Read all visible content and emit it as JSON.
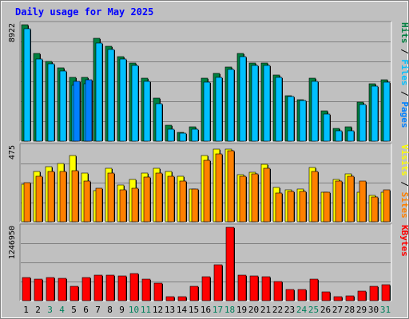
{
  "chart_data": {
    "type": "bar",
    "title": "Daily usage for May 2025",
    "days": [
      "1",
      "2",
      "3",
      "4",
      "5",
      "6",
      "7",
      "8",
      "9",
      "10",
      "11",
      "12",
      "13",
      "14",
      "15",
      "16",
      "17",
      "18",
      "19",
      "20",
      "21",
      "22",
      "23",
      "24",
      "25",
      "26",
      "27",
      "28",
      "29",
      "30",
      "31"
    ],
    "weekend_days": [
      "3",
      "4",
      "10",
      "11",
      "17",
      "18",
      "24",
      "25",
      "31"
    ],
    "colors": {
      "hits": "#008040",
      "files": "#00c0ff",
      "pages": "#0080ff",
      "visits": "#ffff00",
      "sites": "#ff8000",
      "kbytes": "#ff0000",
      "title": "#0000ff",
      "weekend": "#00805c",
      "weekday": "#000000"
    },
    "panels": [
      {
        "name": "hits-files-pages",
        "max_label": "8922",
        "ymax": 8922,
        "series": [
          {
            "name": "Hits",
            "values": [
              8922,
              6700,
              6100,
              5600,
              4900,
              4900,
              7900,
              7300,
              6500,
              6000,
              4800,
              3300,
              1200,
              700,
              1100,
              4800,
              5200,
              5700,
              6700,
              6000,
              6000,
              5100,
              3500,
              3200,
              4800,
              2300,
              1000,
              1100,
              3000,
              4400,
              4700
            ]
          },
          {
            "name": "Files",
            "values": [
              8600,
              6300,
              5900,
              5400,
              4300,
              4400,
              7500,
              7000,
              6300,
              5800,
              4600,
              2900,
              900,
              600,
              900,
              4500,
              4900,
              5500,
              6500,
              5800,
              5800,
              4900,
              3400,
              3100,
              4600,
              2100,
              800,
              800,
              2800,
              4200,
              4500
            ]
          },
          {
            "name": "Pages",
            "values": [
              0,
              0,
              0,
              0,
              4600,
              4700,
              0,
              0,
              0,
              0,
              0,
              0,
              0,
              0,
              0,
              0,
              0,
              0,
              0,
              0,
              0,
              0,
              0,
              0,
              0,
              0,
              0,
              0,
              0,
              0,
              0
            ]
          }
        ],
        "legend": [
          "Pages",
          "Files",
          "Hits"
        ]
      },
      {
        "name": "visits-sites",
        "max_label": "475",
        "ymax": 475,
        "series": [
          {
            "name": "Visits",
            "values": [
              240,
              320,
              350,
              370,
              420,
              310,
              195,
              340,
              230,
              270,
              310,
              340,
              320,
              290,
              205,
              420,
              460,
              460,
              300,
              315,
              365,
              215,
              200,
              205,
              345,
              185,
              270,
              305,
              185,
              165,
              185
            ]
          },
          {
            "name": "Sites",
            "values": [
              250,
              290,
              320,
              320,
              325,
              260,
              210,
              310,
              200,
              210,
              285,
              310,
              290,
              260,
              205,
              390,
              430,
              450,
              290,
              305,
              340,
              180,
              190,
              190,
              320,
              185,
              260,
              290,
              260,
              155,
              200
            ]
          }
        ],
        "legend": [
          "Sites",
          "Visits"
        ]
      },
      {
        "name": "kbytes",
        "max_label": "1246950",
        "ymax": 1246950,
        "series": [
          {
            "name": "KBytes",
            "values": [
              395000,
              365000,
              390000,
              380000,
              250000,
              390000,
              430000,
              430000,
              420000,
              460000,
              370000,
              300000,
              70000,
              70000,
              250000,
              400000,
              610000,
              1246950,
              440000,
              425000,
              400000,
              325000,
              190000,
              195000,
              360000,
              150000,
              70000,
              80000,
              160000,
              240000,
              270000
            ]
          }
        ],
        "legend": [
          "KBytes"
        ]
      }
    ]
  }
}
